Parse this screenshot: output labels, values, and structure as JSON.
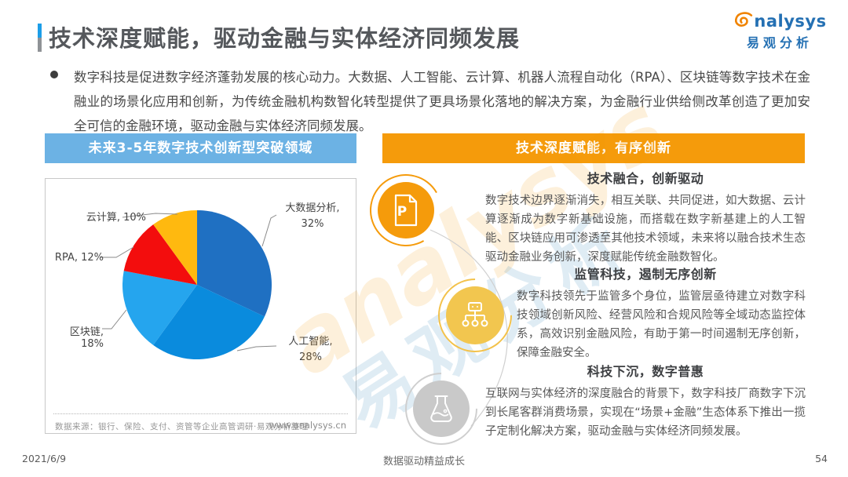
{
  "slide": {
    "title": "技术深度赋能，驱动金融与实体经济同频发展",
    "intro": "数字科技是促进数字经济蓬勃发展的核心动力。大数据、人工智能、云计算、机器人流程自动化（RPA）、区块链等数字技术在金融业的场景化应用和创新，为传统金融机构数智化转型提供了更具场景化落地的解决方案，为金融行业供给侧改革创造了更加安全可信的金融环境，驱动金融与实体经济同频发展。",
    "footer": {
      "date": "2021/6/9",
      "slogan": "数据驱动精益成长",
      "page": "54"
    }
  },
  "logo": {
    "en": "analysys",
    "en_tail": "nalysys",
    "cn": "易观分析"
  },
  "watermark": {
    "en": "analysys",
    "cn": "易观分析"
  },
  "left_panel": {
    "header": "未来3-5年数字技术创新型突破领域",
    "source": "数据来源：银行、保险、支付、资管等企业高管调研·易观分析整理",
    "website": "www.analysys.cn"
  },
  "right_panel": {
    "header": "技术深度赋能，有序创新",
    "blocks": [
      {
        "icon": "document-report-icon",
        "accent_color": "#F59B0B",
        "title": "技术融合，创新驱动",
        "body": "数字技术边界逐渐消失，相互关联、共同促进，如大数据、云计算逐渐成为数字新基础设施，而搭载在数字新基建上的人工智能、区块链应用可渗透至其他技术领域，未来将以融合技术生态驱动金融业务创新，深度赋能传统金融数智化。"
      },
      {
        "icon": "org-chart-icon",
        "accent_color": "#F2C64F",
        "title": "监管科技，遏制无序创新",
        "body": "数字科技领先于监管多个身位，监管层亟待建立对数字科技领域创新风险、经营风险和合规风险等全域动态监控体系，高效识别金融风险，有助于第一时间遏制无序创新，保障金融安全。"
      },
      {
        "icon": "flask-icon",
        "accent_color": "#C9C9C9",
        "title": "科技下沉，数字普惠",
        "body": "互联网与实体经济的深度融合的背景下，数字科技厂商数字下沉到长尾客群消费场景，实现在“场景+金融”生态体系下推出一揽子定制化解决方案，驱动金融与实体经济同频发展。"
      }
    ]
  },
  "chart_data": {
    "type": "pie",
    "title": "未来3-5年数字技术创新型突破领域",
    "labels": [
      "大数据分析",
      "人工智能",
      "区块链",
      "RPA",
      "云计算"
    ],
    "values": [
      32,
      28,
      18,
      12,
      10
    ],
    "colors": [
      "#1F70C2",
      "#0A8BDD",
      "#25A5EE",
      "#F30D0D",
      "#FFB90F"
    ],
    "unit": "%",
    "start_angle_deg": 0,
    "direction": "clockwise",
    "legend": "none",
    "label_format": "{label}, {value}%"
  }
}
